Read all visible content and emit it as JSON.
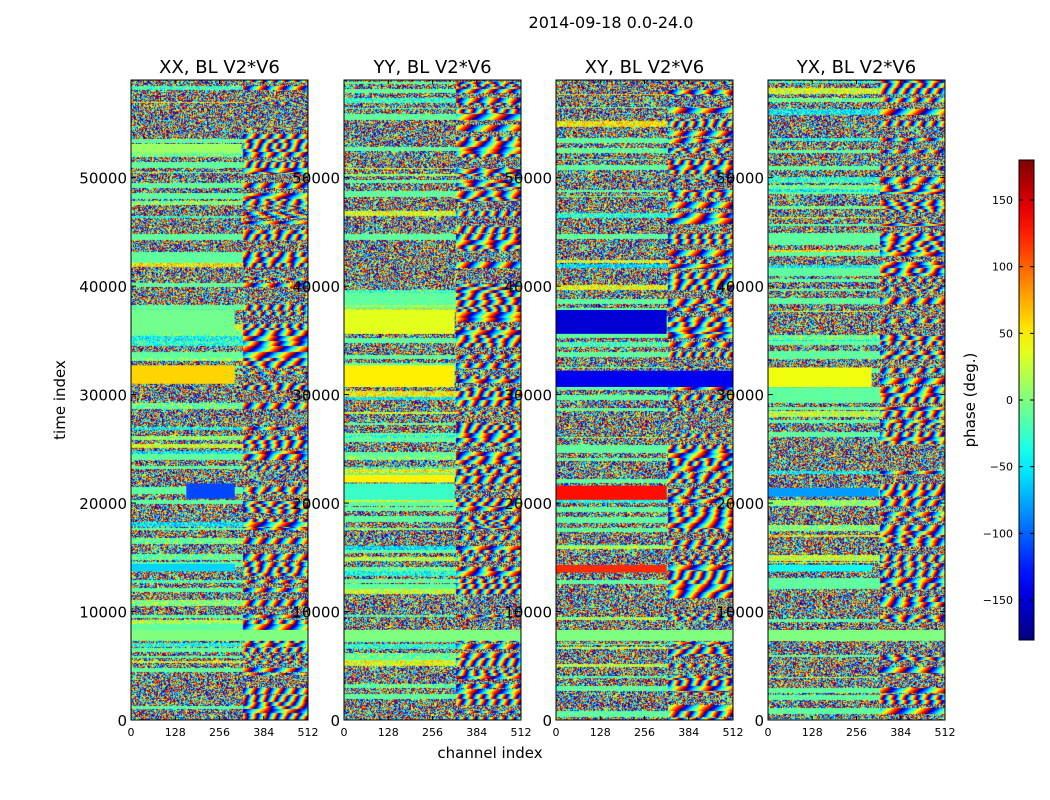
{
  "chart_data": {
    "type": "heatmap",
    "title": "2014-09-18 0.0-24.0",
    "xlabel": "channel index",
    "ylabel": "time index",
    "colorbar_label": "phase (deg.)",
    "x_range": [
      0,
      512
    ],
    "y_range": [
      0,
      59000
    ],
    "x_ticks": [
      0,
      128,
      256,
      384,
      512
    ],
    "y_ticks": [
      0,
      10000,
      20000,
      30000,
      40000,
      50000
    ],
    "color_range": [
      -180,
      180
    ],
    "colorbar_ticks": [
      -150,
      -100,
      -50,
      0,
      50,
      100,
      150
    ],
    "colorbar_tick_labels": [
      "−150",
      "−100",
      "−50",
      "0",
      "50",
      "100",
      "150"
    ],
    "colormap": "jet",
    "panels": [
      {
        "title": "XX, BL V2*V6",
        "bands": [
          {
            "t0": 31000,
            "t1": 32700,
            "x0": 0,
            "x1": 300,
            "phase": 60
          },
          {
            "t0": 35600,
            "t1": 37800,
            "x0": 0,
            "x1": 300,
            "phase": -5
          },
          {
            "t0": 20400,
            "t1": 21800,
            "x0": 160,
            "x1": 300,
            "phase": -110
          },
          {
            "t0": 13700,
            "t1": 14400,
            "x0": 0,
            "x1": 300,
            "phase": -60
          },
          {
            "t0": 7300,
            "t1": 8300,
            "x0": 0,
            "x1": 512,
            "phase": 0
          },
          {
            "t0": 52300,
            "t1": 53100,
            "x0": 0,
            "x1": 320,
            "phase": 10
          }
        ]
      },
      {
        "title": "YY, BL V2*V6",
        "bands": [
          {
            "t0": 30700,
            "t1": 32700,
            "x0": 0,
            "x1": 320,
            "phase": 50
          },
          {
            "t0": 35600,
            "t1": 37800,
            "x0": 0,
            "x1": 320,
            "phase": 35
          },
          {
            "t0": 21900,
            "t1": 22600,
            "x0": 0,
            "x1": 320,
            "phase": 50
          },
          {
            "t0": 20300,
            "t1": 21800,
            "x0": 0,
            "x1": 320,
            "phase": -25
          },
          {
            "t0": 7300,
            "t1": 8300,
            "x0": 0,
            "x1": 512,
            "phase": 0
          }
        ]
      },
      {
        "title": "XY, BL V2*V6",
        "bands": [
          {
            "t0": 30700,
            "t1": 32200,
            "x0": 0,
            "x1": 512,
            "phase": -140
          },
          {
            "t0": 35600,
            "t1": 37800,
            "x0": 0,
            "x1": 320,
            "phase": -150
          },
          {
            "t0": 20300,
            "t1": 21600,
            "x0": 0,
            "x1": 320,
            "phase": 130
          },
          {
            "t0": 13600,
            "t1": 14300,
            "x0": 0,
            "x1": 320,
            "phase": 120
          },
          {
            "t0": 7300,
            "t1": 8300,
            "x0": 0,
            "x1": 512,
            "phase": 0
          }
        ]
      },
      {
        "title": "YX, BL V2*V6",
        "bands": [
          {
            "t0": 30700,
            "t1": 32500,
            "x0": 0,
            "x1": 300,
            "phase": 40
          },
          {
            "t0": 20600,
            "t1": 21400,
            "x0": 0,
            "x1": 320,
            "phase": -80
          },
          {
            "t0": 13700,
            "t1": 14300,
            "x0": 0,
            "x1": 300,
            "phase": -40
          },
          {
            "t0": 7300,
            "t1": 8300,
            "x0": 0,
            "x1": 512,
            "phase": 0
          }
        ]
      }
    ]
  }
}
